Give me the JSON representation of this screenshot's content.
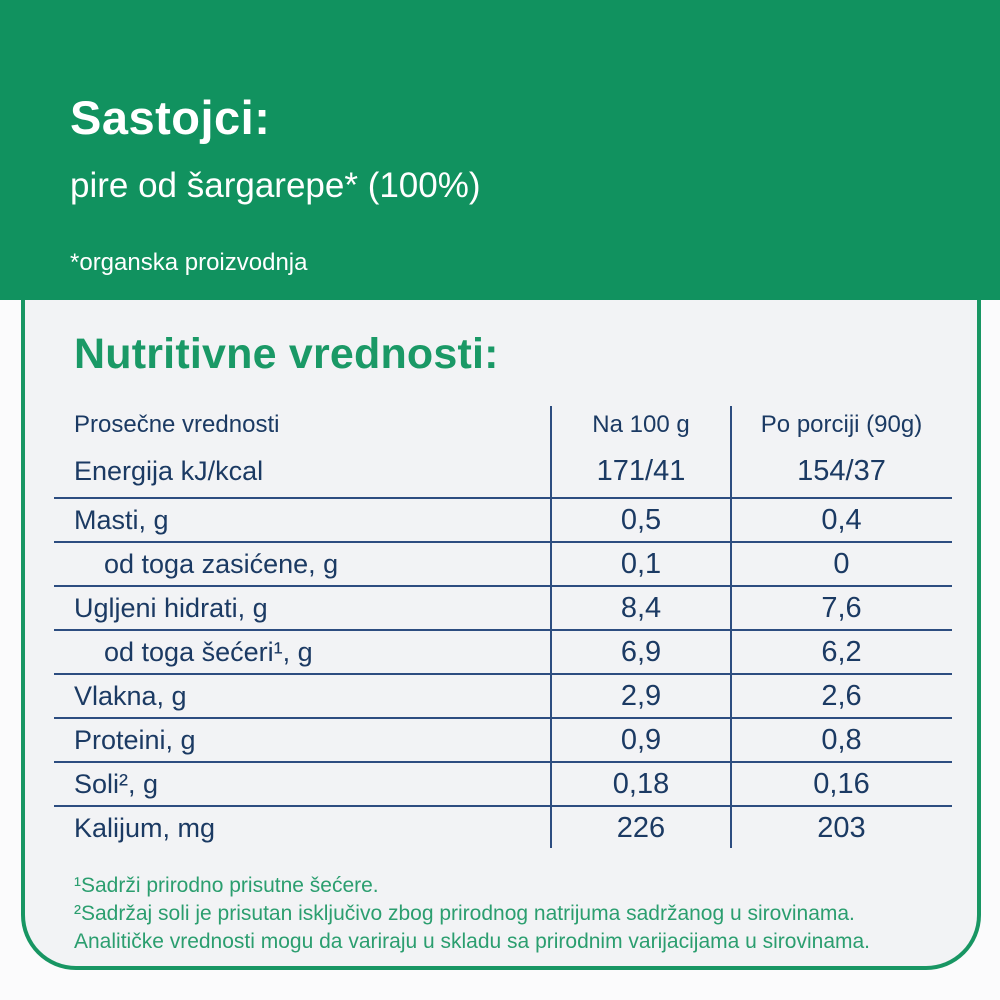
{
  "header": {
    "title": "Sastojci:",
    "ingredients": "pire od šargarepe* (100%)",
    "note": "*organska proizvodnja"
  },
  "nutrition": {
    "heading": "Nutritivne vrednosti:",
    "columns": {
      "label": "Prosečne vrednosti",
      "per100": "Na 100 g",
      "portion": "Po porciji (90g)"
    },
    "rows": [
      {
        "label": "Energija kJ/kcal",
        "per100": "171/41",
        "portion": "154/37"
      },
      {
        "label": "Masti, g",
        "per100": "0,5",
        "portion": "0,4"
      },
      {
        "label": "od toga zasićene, g",
        "per100": "0,1",
        "portion": "0"
      },
      {
        "label": "Ugljeni hidrati, g",
        "per100": "8,4",
        "portion": "7,6"
      },
      {
        "label": "od toga šećeri¹, g",
        "per100": "6,9",
        "portion": "6,2"
      },
      {
        "label": "Vlakna, g",
        "per100": "2,9",
        "portion": "2,6"
      },
      {
        "label": "Proteini, g",
        "per100": "0,9",
        "portion": "0,8"
      },
      {
        "label": "Soli², g",
        "per100": "0,18",
        "portion": "0,16"
      },
      {
        "label": "Kalijum, mg",
        "per100": "226",
        "portion": "203"
      }
    ],
    "footnotes": [
      "¹Sadrži prirodno prisutne šećere.",
      "²Sadržaj soli je prisutan isključivo zbog prirodnog natrijuma sadržanog u sirovinama.",
      "Analitičke vrednosti mogu da variraju u skladu sa prirodnim varijacijama u sirovinama."
    ]
  },
  "colors": {
    "banner_green": "#11925f",
    "border_green": "#189663",
    "heading_green": "#1a9966",
    "footnote_green": "#2b9e6f",
    "table_navy": "#1b3a63",
    "panel_background": "#f2f3f5"
  }
}
